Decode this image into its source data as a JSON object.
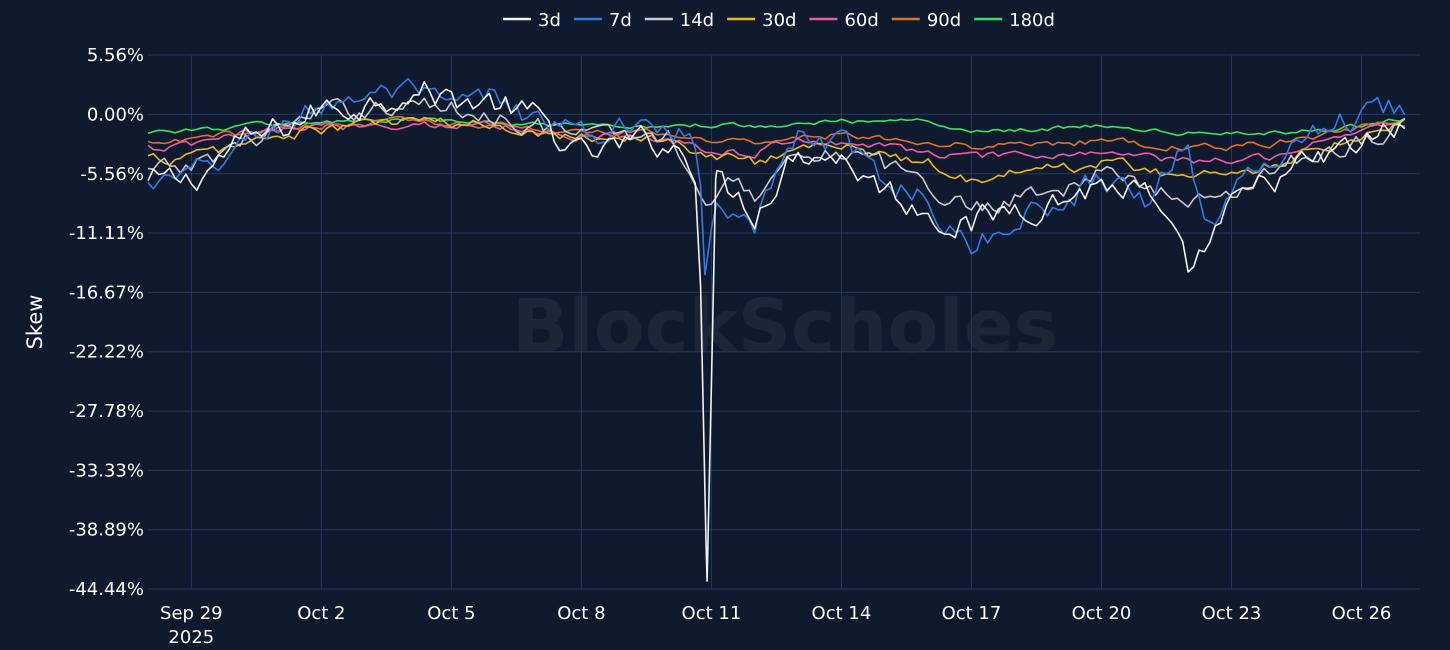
{
  "chart_data": {
    "type": "line",
    "ylabel": "Skew",
    "watermark": "BlockScholes",
    "y_ticks": [
      "5.56%",
      "0.00%",
      "-5.56%",
      "-11.11%",
      "-16.67%",
      "-22.22%",
      "-27.78%",
      "-33.33%",
      "-38.89%",
      "-44.44%"
    ],
    "ylim": [
      -44.44,
      5.56
    ],
    "x_ticks": [
      {
        "date": "2025-09-29",
        "label": "Sep 29",
        "sublabel": "2025"
      },
      {
        "date": "2025-10-02",
        "label": "Oct 2"
      },
      {
        "date": "2025-10-05",
        "label": "Oct 5"
      },
      {
        "date": "2025-10-08",
        "label": "Oct 8"
      },
      {
        "date": "2025-10-11",
        "label": "Oct 11"
      },
      {
        "date": "2025-10-14",
        "label": "Oct 14"
      },
      {
        "date": "2025-10-17",
        "label": "Oct 17"
      },
      {
        "date": "2025-10-20",
        "label": "Oct 20"
      },
      {
        "date": "2025-10-23",
        "label": "Oct 23"
      },
      {
        "date": "2025-10-26",
        "label": "Oct 26"
      }
    ],
    "xlim": [
      "2025-09-28",
      "2025-10-27"
    ],
    "grid": true,
    "legend_position": "top",
    "series": [
      {
        "name": "3d",
        "color": "#f2f2f2",
        "noise": 1.5,
        "points": [
          [
            "2025-09-28",
            -6.5
          ],
          [
            "2025-09-29",
            -6.2
          ],
          [
            "2025-09-30",
            -3.0
          ],
          [
            "2025-10-01",
            -1.5
          ],
          [
            "2025-10-02",
            0.5
          ],
          [
            "2025-10-03",
            1.0
          ],
          [
            "2025-10-04",
            2.5
          ],
          [
            "2025-10-05",
            1.5
          ],
          [
            "2025-10-06",
            1.0
          ],
          [
            "2025-10-07",
            -0.5
          ],
          [
            "2025-10-08",
            -4.0
          ],
          [
            "2025-10-09",
            -3.0
          ],
          [
            "2025-10-10",
            -2.5
          ],
          [
            "2025-10-10.7",
            -5.0
          ],
          [
            "2025-10-10.9",
            -43.7
          ],
          [
            "2025-10-11.1",
            -6.0
          ],
          [
            "2025-10-12",
            -9.0
          ],
          [
            "2025-10-13",
            -3.0
          ],
          [
            "2025-10-14",
            -4.0
          ],
          [
            "2025-10-15",
            -7.0
          ],
          [
            "2025-10-16",
            -9.0
          ],
          [
            "2025-10-17",
            -10.5
          ],
          [
            "2025-10-18",
            -8.5
          ],
          [
            "2025-10-19",
            -8.0
          ],
          [
            "2025-10-20",
            -6.5
          ],
          [
            "2025-10-21",
            -7.5
          ],
          [
            "2025-10-22",
            -15.0
          ],
          [
            "2025-10-23",
            -9.0
          ],
          [
            "2025-10-24",
            -6.0
          ],
          [
            "2025-10-25",
            -4.5
          ],
          [
            "2025-10-26",
            -3.0
          ],
          [
            "2025-10-27",
            -1.0
          ]
        ]
      },
      {
        "name": "7d",
        "color": "#2f7bea",
        "noise": 1.3,
        "points": [
          [
            "2025-09-28",
            -6.8
          ],
          [
            "2025-09-29",
            -6.0
          ],
          [
            "2025-09-30",
            -3.5
          ],
          [
            "2025-10-01",
            -1.0
          ],
          [
            "2025-10-02",
            0.8
          ],
          [
            "2025-10-03",
            2.0
          ],
          [
            "2025-10-04",
            1.8
          ],
          [
            "2025-10-05",
            0.5
          ],
          [
            "2025-10-06",
            1.5
          ],
          [
            "2025-10-07",
            -0.5
          ],
          [
            "2025-10-08",
            -2.0
          ],
          [
            "2025-10-09",
            -1.5
          ],
          [
            "2025-10-10",
            -0.5
          ],
          [
            "2025-10-10.7",
            -3.0
          ],
          [
            "2025-10-10.85",
            -15.0
          ],
          [
            "2025-10-11.1",
            -7.0
          ],
          [
            "2025-10-12",
            -10.0
          ],
          [
            "2025-10-13",
            -2.0
          ],
          [
            "2025-10-14",
            -3.0
          ],
          [
            "2025-10-15",
            -6.0
          ],
          [
            "2025-10-16",
            -8.0
          ],
          [
            "2025-10-17",
            -13.0
          ],
          [
            "2025-10-18",
            -9.5
          ],
          [
            "2025-10-19",
            -8.5
          ],
          [
            "2025-10-20",
            -5.5
          ],
          [
            "2025-10-21",
            -8.0
          ],
          [
            "2025-10-22",
            -2.0
          ],
          [
            "2025-10-22.4",
            -11.0
          ],
          [
            "2025-10-23",
            -7.5
          ],
          [
            "2025-10-24",
            -4.0
          ],
          [
            "2025-10-25",
            -1.0
          ],
          [
            "2025-10-26",
            0.0
          ],
          [
            "2025-10-27",
            1.0
          ]
        ]
      },
      {
        "name": "14d",
        "color": "#c8c8cc",
        "noise": 1.0,
        "points": [
          [
            "2025-09-28",
            -5.5
          ],
          [
            "2025-09-29",
            -5.0
          ],
          [
            "2025-09-30",
            -2.8
          ],
          [
            "2025-10-01",
            -1.5
          ],
          [
            "2025-10-02",
            0.0
          ],
          [
            "2025-10-03",
            0.5
          ],
          [
            "2025-10-04",
            1.0
          ],
          [
            "2025-10-05",
            0.5
          ],
          [
            "2025-10-06",
            0.0
          ],
          [
            "2025-10-07",
            -1.0
          ],
          [
            "2025-10-08",
            -2.0
          ],
          [
            "2025-10-09",
            -2.0
          ],
          [
            "2025-10-10",
            -2.0
          ],
          [
            "2025-10-10.9",
            -8.0
          ],
          [
            "2025-10-11.2",
            -6.0
          ],
          [
            "2025-10-12",
            -7.5
          ],
          [
            "2025-10-13",
            -3.0
          ],
          [
            "2025-10-14",
            -3.5
          ],
          [
            "2025-10-15",
            -5.0
          ],
          [
            "2025-10-16",
            -6.5
          ],
          [
            "2025-10-17",
            -9.0
          ],
          [
            "2025-10-18",
            -7.5
          ],
          [
            "2025-10-19",
            -7.0
          ],
          [
            "2025-10-20",
            -5.5
          ],
          [
            "2025-10-21",
            -6.5
          ],
          [
            "2025-10-22",
            -8.5
          ],
          [
            "2025-10-23",
            -7.0
          ],
          [
            "2025-10-24",
            -5.0
          ],
          [
            "2025-10-25",
            -3.5
          ],
          [
            "2025-10-26",
            -2.5
          ],
          [
            "2025-10-27",
            -0.8
          ]
        ]
      },
      {
        "name": "30d",
        "color": "#e9b71e",
        "noise": 0.6,
        "points": [
          [
            "2025-09-28",
            -4.2
          ],
          [
            "2025-09-29",
            -4.0
          ],
          [
            "2025-09-30",
            -3.0
          ],
          [
            "2025-10-01",
            -2.0
          ],
          [
            "2025-10-02",
            -1.5
          ],
          [
            "2025-10-03",
            -1.0
          ],
          [
            "2025-10-04",
            -0.5
          ],
          [
            "2025-10-05",
            -1.0
          ],
          [
            "2025-10-06",
            -1.0
          ],
          [
            "2025-10-07",
            -1.5
          ],
          [
            "2025-10-08",
            -2.0
          ],
          [
            "2025-10-09",
            -2.0
          ],
          [
            "2025-10-10",
            -2.5
          ],
          [
            "2025-10-11",
            -4.0
          ],
          [
            "2025-10-12",
            -4.5
          ],
          [
            "2025-10-13",
            -3.0
          ],
          [
            "2025-10-14",
            -3.0
          ],
          [
            "2025-10-15",
            -4.0
          ],
          [
            "2025-10-16",
            -4.5
          ],
          [
            "2025-10-17",
            -6.0
          ],
          [
            "2025-10-18",
            -5.5
          ],
          [
            "2025-10-19",
            -5.0
          ],
          [
            "2025-10-20",
            -4.5
          ],
          [
            "2025-10-21",
            -5.0
          ],
          [
            "2025-10-22",
            -6.0
          ],
          [
            "2025-10-23",
            -5.5
          ],
          [
            "2025-10-24",
            -4.5
          ],
          [
            "2025-10-25",
            -3.0
          ],
          [
            "2025-10-26",
            -2.0
          ],
          [
            "2025-10-27",
            -0.3
          ]
        ]
      },
      {
        "name": "60d",
        "color": "#ec5ba6",
        "noise": 0.45,
        "points": [
          [
            "2025-09-28",
            -3.2
          ],
          [
            "2025-09-29",
            -3.0
          ],
          [
            "2025-09-30",
            -2.0
          ],
          [
            "2025-10-01",
            -1.5
          ],
          [
            "2025-10-02",
            -1.2
          ],
          [
            "2025-10-03",
            -1.0
          ],
          [
            "2025-10-04",
            -0.8
          ],
          [
            "2025-10-05",
            -1.0
          ],
          [
            "2025-10-06",
            -1.0
          ],
          [
            "2025-10-07",
            -1.5
          ],
          [
            "2025-10-08",
            -2.0
          ],
          [
            "2025-10-09",
            -2.0
          ],
          [
            "2025-10-10",
            -2.2
          ],
          [
            "2025-10-11",
            -3.5
          ],
          [
            "2025-10-12",
            -3.5
          ],
          [
            "2025-10-13",
            -2.5
          ],
          [
            "2025-10-14",
            -2.5
          ],
          [
            "2025-10-15",
            -3.0
          ],
          [
            "2025-10-16",
            -3.5
          ],
          [
            "2025-10-17",
            -4.0
          ],
          [
            "2025-10-18",
            -4.0
          ],
          [
            "2025-10-19",
            -3.8
          ],
          [
            "2025-10-20",
            -3.5
          ],
          [
            "2025-10-21",
            -4.0
          ],
          [
            "2025-10-22",
            -4.5
          ],
          [
            "2025-10-23",
            -4.3
          ],
          [
            "2025-10-24",
            -3.8
          ],
          [
            "2025-10-25",
            -2.5
          ],
          [
            "2025-10-26",
            -1.5
          ],
          [
            "2025-10-27",
            -0.8
          ]
        ]
      },
      {
        "name": "90d",
        "color": "#e0702a",
        "noise": 0.35,
        "points": [
          [
            "2025-09-28",
            -2.8
          ],
          [
            "2025-09-29",
            -2.5
          ],
          [
            "2025-09-30",
            -1.8
          ],
          [
            "2025-10-01",
            -1.3
          ],
          [
            "2025-10-02",
            -1.0
          ],
          [
            "2025-10-03",
            -0.8
          ],
          [
            "2025-10-04",
            -0.6
          ],
          [
            "2025-10-05",
            -0.8
          ],
          [
            "2025-10-06",
            -0.9
          ],
          [
            "2025-10-07",
            -1.3
          ],
          [
            "2025-10-08",
            -1.8
          ],
          [
            "2025-10-09",
            -1.8
          ],
          [
            "2025-10-10",
            -1.8
          ],
          [
            "2025-10-11",
            -2.5
          ],
          [
            "2025-10-12",
            -2.5
          ],
          [
            "2025-10-13",
            -2.0
          ],
          [
            "2025-10-14",
            -2.0
          ],
          [
            "2025-10-15",
            -2.2
          ],
          [
            "2025-10-16",
            -2.5
          ],
          [
            "2025-10-17",
            -3.0
          ],
          [
            "2025-10-18",
            -2.8
          ],
          [
            "2025-10-19",
            -2.7
          ],
          [
            "2025-10-20",
            -2.5
          ],
          [
            "2025-10-21",
            -2.8
          ],
          [
            "2025-10-22",
            -3.2
          ],
          [
            "2025-10-23",
            -3.0
          ],
          [
            "2025-10-24",
            -2.7
          ],
          [
            "2025-10-25",
            -2.0
          ],
          [
            "2025-10-26",
            -1.2
          ],
          [
            "2025-10-27",
            -0.5
          ]
        ]
      },
      {
        "name": "180d",
        "color": "#35e35f",
        "noise": 0.25,
        "points": [
          [
            "2025-09-28",
            -1.6
          ],
          [
            "2025-09-29",
            -1.5
          ],
          [
            "2025-09-30",
            -1.2
          ],
          [
            "2025-10-01",
            -0.8
          ],
          [
            "2025-10-02",
            -0.8
          ],
          [
            "2025-10-03",
            -0.6
          ],
          [
            "2025-10-04",
            -0.5
          ],
          [
            "2025-10-05",
            -0.7
          ],
          [
            "2025-10-06",
            -0.8
          ],
          [
            "2025-10-07",
            -1.0
          ],
          [
            "2025-10-08",
            -1.2
          ],
          [
            "2025-10-09",
            -1.2
          ],
          [
            "2025-10-10",
            -1.0
          ],
          [
            "2025-10-11",
            -1.0
          ],
          [
            "2025-10-12",
            -1.0
          ],
          [
            "2025-10-13",
            -0.8
          ],
          [
            "2025-10-14",
            -0.6
          ],
          [
            "2025-10-15",
            -0.8
          ],
          [
            "2025-10-16",
            -0.6
          ],
          [
            "2025-10-17",
            -1.5
          ],
          [
            "2025-10-18",
            -1.4
          ],
          [
            "2025-10-19",
            -1.3
          ],
          [
            "2025-10-20",
            -1.0
          ],
          [
            "2025-10-21",
            -1.5
          ],
          [
            "2025-10-22",
            -1.8
          ],
          [
            "2025-10-23",
            -1.8
          ],
          [
            "2025-10-24",
            -1.8
          ],
          [
            "2025-10-25",
            -1.5
          ],
          [
            "2025-10-26",
            -1.0
          ],
          [
            "2025-10-27",
            -0.3
          ]
        ]
      }
    ]
  }
}
